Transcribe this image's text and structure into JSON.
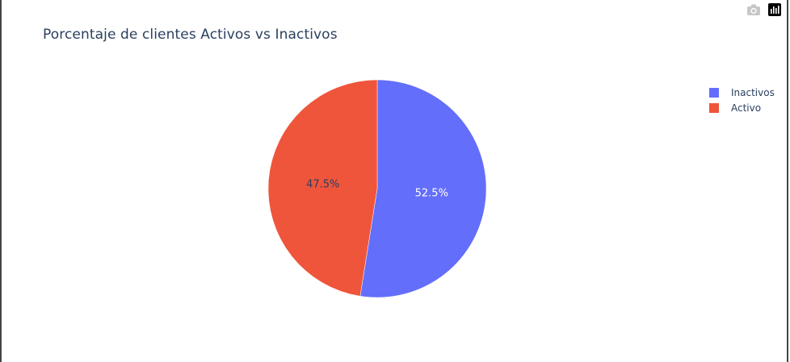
{
  "toolbar": {
    "camera_icon": "camera-icon",
    "plotly_icon": "plotly-logo-icon"
  },
  "chart_data": {
    "type": "pie",
    "title": "Porcentaje de clientes Activos vs Inactivos",
    "labels": [
      "Inactivos",
      "Activo"
    ],
    "values": [
      52.5,
      47.5
    ],
    "text_labels": [
      "52.5%",
      "47.5%"
    ],
    "colors": [
      "#636efa",
      "#ef553b"
    ],
    "text_colors": [
      "#ffffff",
      "#2a3f5f"
    ],
    "legend_position": "top-right",
    "direction": "clockwise",
    "start": "top"
  }
}
